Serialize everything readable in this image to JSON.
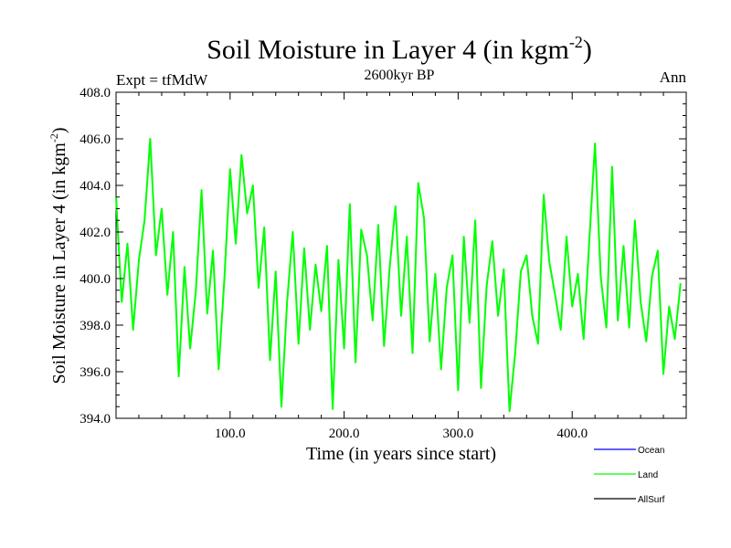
{
  "chart_data": {
    "type": "line",
    "title": "Soil Moisture in Layer 4 (in kgm",
    "title_sup": "-2",
    "title_close": ")",
    "subtitle": "2600kyr BP",
    "left_label": "Expt = tfMdW",
    "right_label": "Ann",
    "xlabel": "Time (in years since start)",
    "ylabel": "Soil Moisture in Layer 4 (in kgm",
    "ylabel_sup": "-2",
    "ylabel_close": ")",
    "xlim": [
      0,
      500
    ],
    "ylim": [
      394,
      408
    ],
    "x_ticks": [
      100,
      200,
      300,
      400
    ],
    "x_tick_labels": [
      "100.0",
      "200.0",
      "300.0",
      "400.0"
    ],
    "y_ticks": [
      394,
      396,
      398,
      400,
      402,
      404,
      406,
      408
    ],
    "y_tick_labels": [
      "394.0",
      "396.0",
      "398.0",
      "400.0",
      "402.0",
      "404.0",
      "406.0",
      "408.0"
    ],
    "legend": [
      {
        "name": "Ocean",
        "color": "#0000ff"
      },
      {
        "name": "Land",
        "color": "#00ff00"
      },
      {
        "name": "AllSurf",
        "color": "#000000"
      }
    ],
    "series": [
      {
        "name": "Land",
        "color": "#00ff00",
        "x_start": 0,
        "x_step": 5,
        "values": [
          403.5,
          399.0,
          401.5,
          397.8,
          400.8,
          402.5,
          406.0,
          401.0,
          403.0,
          399.3,
          402.0,
          395.8,
          400.5,
          397.0,
          399.5,
          403.8,
          398.5,
          401.2,
          396.1,
          400.0,
          404.7,
          401.5,
          405.3,
          402.8,
          404.0,
          399.6,
          402.2,
          396.5,
          400.3,
          394.5,
          399.0,
          402.0,
          397.2,
          401.3,
          397.8,
          400.6,
          398.6,
          401.4,
          394.4,
          400.8,
          397.0,
          403.2,
          396.4,
          402.1,
          401.0,
          398.2,
          402.3,
          397.1,
          400.5,
          403.1,
          398.4,
          401.8,
          396.8,
          404.1,
          402.6,
          397.3,
          400.2,
          396.1,
          399.6,
          401.0,
          395.2,
          401.8,
          398.1,
          402.5,
          395.3,
          399.7,
          401.6,
          398.4,
          400.4,
          394.3,
          396.8,
          400.3,
          401.0,
          398.4,
          397.2,
          403.6,
          400.7,
          399.3,
          397.8,
          401.8,
          398.8,
          400.2,
          397.4,
          401.6,
          405.8,
          400.1,
          397.9,
          404.8,
          398.2,
          401.4,
          397.9,
          402.5,
          399.0,
          397.3,
          400.1,
          401.2,
          395.9,
          398.8,
          397.4,
          399.8
        ]
      }
    ]
  }
}
